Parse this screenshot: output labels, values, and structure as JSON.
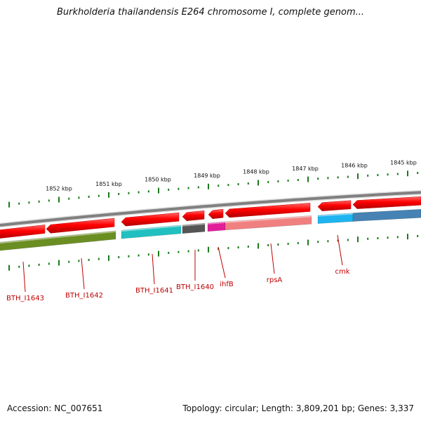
{
  "title": "Burkholderia thailandensis E264 chromosome I, complete genom...",
  "footer": {
    "accession": "Accession: NC_007651",
    "summary": "Topology: circular; Length: 3,809,201 bp; Genes: 3,337"
  },
  "scale": {
    "major_ticks_kbp": [
      "1852 kbp",
      "1851 kbp",
      "1850 kbp",
      "1849 kbp",
      "1848 kbp",
      "1847 kbp",
      "1846 kbp",
      "1845 kbp"
    ]
  },
  "genes": [
    {
      "label": "BTH_I1643",
      "strand": "-",
      "color": "#6b8e23"
    },
    {
      "label": "BTH_I1642",
      "strand": "-",
      "color": "#6b8e23"
    },
    {
      "label": "BTH_I1641",
      "strand": "-",
      "color": "#20c0c0"
    },
    {
      "label": "BTH_I1640",
      "strand": "-",
      "color": "#555555"
    },
    {
      "label": "ihfB",
      "strand": "-",
      "color": "#e01e9a"
    },
    {
      "label": "rpsA",
      "strand": "-",
      "color": "#f08080"
    },
    {
      "label": "cmk",
      "strand": "-",
      "color": "#1eb4f0"
    }
  ],
  "colors": {
    "cds_track": "#ff0000",
    "backbone": "#808080",
    "ticks": "#1a7a1a",
    "label_text": "#c00000",
    "extra_blue": "#4682b4"
  }
}
